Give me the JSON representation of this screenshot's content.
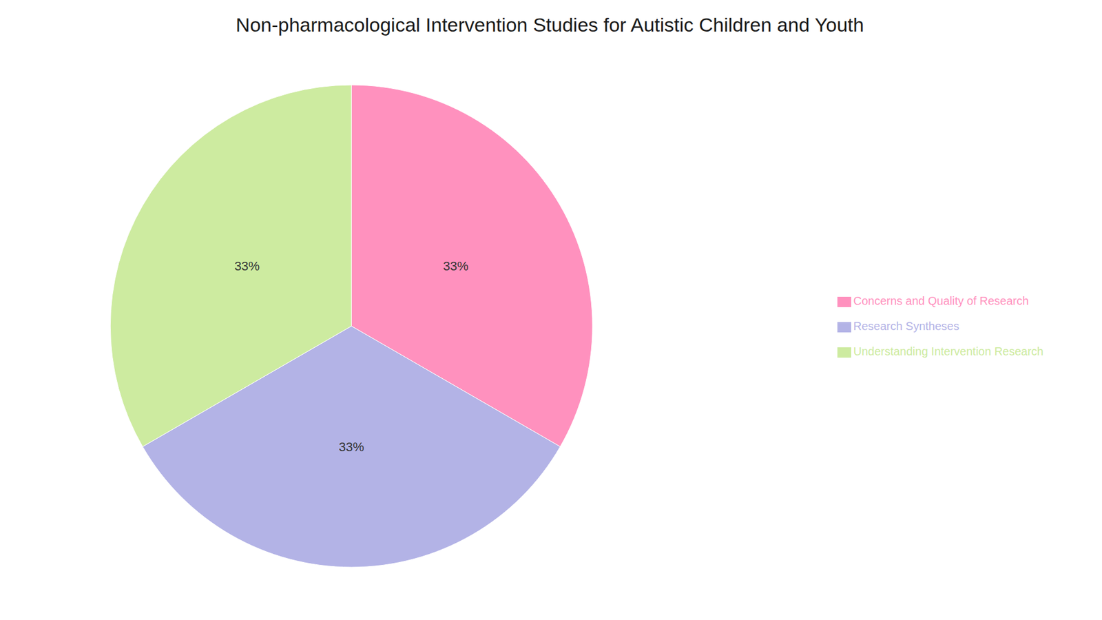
{
  "chart_data": {
    "type": "pie",
    "title": "Non-pharmacological Intervention Studies for Autistic Children and Youth",
    "categories": [
      "Concerns and Quality of Research",
      "Research Syntheses",
      "Understanding Intervention Research"
    ],
    "values": [
      33,
      33,
      33
    ],
    "value_labels": [
      "33%",
      "33%",
      "33%"
    ],
    "colors": [
      "#FF91BE",
      "#B3B3E6",
      "#CDEBA0"
    ],
    "data_labels": true,
    "legend": "right"
  }
}
